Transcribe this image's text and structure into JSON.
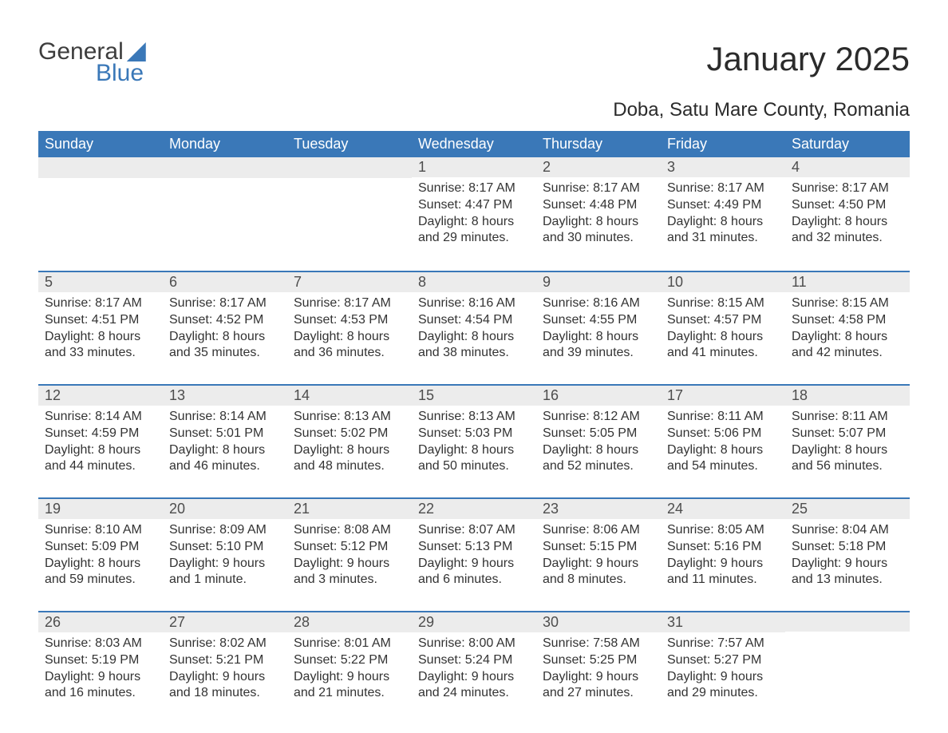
{
  "logo": {
    "text1": "General",
    "text2": "Blue"
  },
  "title": "January 2025",
  "location": "Doba, Satu Mare County, Romania",
  "colors": {
    "header_bg": "#3a78b8",
    "header_text": "#ffffff",
    "daynum_bg": "#ececec",
    "daynum_border": "#3a78b8",
    "body_bg": "#ffffff",
    "text": "#333333"
  },
  "weekdays": [
    "Sunday",
    "Monday",
    "Tuesday",
    "Wednesday",
    "Thursday",
    "Friday",
    "Saturday"
  ],
  "weeks": [
    [
      {
        "day": "",
        "sunrise": "",
        "sunset": "",
        "daylight": ""
      },
      {
        "day": "",
        "sunrise": "",
        "sunset": "",
        "daylight": ""
      },
      {
        "day": "",
        "sunrise": "",
        "sunset": "",
        "daylight": ""
      },
      {
        "day": "1",
        "sunrise": "Sunrise: 8:17 AM",
        "sunset": "Sunset: 4:47 PM",
        "daylight": "Daylight: 8 hours and 29 minutes."
      },
      {
        "day": "2",
        "sunrise": "Sunrise: 8:17 AM",
        "sunset": "Sunset: 4:48 PM",
        "daylight": "Daylight: 8 hours and 30 minutes."
      },
      {
        "day": "3",
        "sunrise": "Sunrise: 8:17 AM",
        "sunset": "Sunset: 4:49 PM",
        "daylight": "Daylight: 8 hours and 31 minutes."
      },
      {
        "day": "4",
        "sunrise": "Sunrise: 8:17 AM",
        "sunset": "Sunset: 4:50 PM",
        "daylight": "Daylight: 8 hours and 32 minutes."
      }
    ],
    [
      {
        "day": "5",
        "sunrise": "Sunrise: 8:17 AM",
        "sunset": "Sunset: 4:51 PM",
        "daylight": "Daylight: 8 hours and 33 minutes."
      },
      {
        "day": "6",
        "sunrise": "Sunrise: 8:17 AM",
        "sunset": "Sunset: 4:52 PM",
        "daylight": "Daylight: 8 hours and 35 minutes."
      },
      {
        "day": "7",
        "sunrise": "Sunrise: 8:17 AM",
        "sunset": "Sunset: 4:53 PM",
        "daylight": "Daylight: 8 hours and 36 minutes."
      },
      {
        "day": "8",
        "sunrise": "Sunrise: 8:16 AM",
        "sunset": "Sunset: 4:54 PM",
        "daylight": "Daylight: 8 hours and 38 minutes."
      },
      {
        "day": "9",
        "sunrise": "Sunrise: 8:16 AM",
        "sunset": "Sunset: 4:55 PM",
        "daylight": "Daylight: 8 hours and 39 minutes."
      },
      {
        "day": "10",
        "sunrise": "Sunrise: 8:15 AM",
        "sunset": "Sunset: 4:57 PM",
        "daylight": "Daylight: 8 hours and 41 minutes."
      },
      {
        "day": "11",
        "sunrise": "Sunrise: 8:15 AM",
        "sunset": "Sunset: 4:58 PM",
        "daylight": "Daylight: 8 hours and 42 minutes."
      }
    ],
    [
      {
        "day": "12",
        "sunrise": "Sunrise: 8:14 AM",
        "sunset": "Sunset: 4:59 PM",
        "daylight": "Daylight: 8 hours and 44 minutes."
      },
      {
        "day": "13",
        "sunrise": "Sunrise: 8:14 AM",
        "sunset": "Sunset: 5:01 PM",
        "daylight": "Daylight: 8 hours and 46 minutes."
      },
      {
        "day": "14",
        "sunrise": "Sunrise: 8:13 AM",
        "sunset": "Sunset: 5:02 PM",
        "daylight": "Daylight: 8 hours and 48 minutes."
      },
      {
        "day": "15",
        "sunrise": "Sunrise: 8:13 AM",
        "sunset": "Sunset: 5:03 PM",
        "daylight": "Daylight: 8 hours and 50 minutes."
      },
      {
        "day": "16",
        "sunrise": "Sunrise: 8:12 AM",
        "sunset": "Sunset: 5:05 PM",
        "daylight": "Daylight: 8 hours and 52 minutes."
      },
      {
        "day": "17",
        "sunrise": "Sunrise: 8:11 AM",
        "sunset": "Sunset: 5:06 PM",
        "daylight": "Daylight: 8 hours and 54 minutes."
      },
      {
        "day": "18",
        "sunrise": "Sunrise: 8:11 AM",
        "sunset": "Sunset: 5:07 PM",
        "daylight": "Daylight: 8 hours and 56 minutes."
      }
    ],
    [
      {
        "day": "19",
        "sunrise": "Sunrise: 8:10 AM",
        "sunset": "Sunset: 5:09 PM",
        "daylight": "Daylight: 8 hours and 59 minutes."
      },
      {
        "day": "20",
        "sunrise": "Sunrise: 8:09 AM",
        "sunset": "Sunset: 5:10 PM",
        "daylight": "Daylight: 9 hours and 1 minute."
      },
      {
        "day": "21",
        "sunrise": "Sunrise: 8:08 AM",
        "sunset": "Sunset: 5:12 PM",
        "daylight": "Daylight: 9 hours and 3 minutes."
      },
      {
        "day": "22",
        "sunrise": "Sunrise: 8:07 AM",
        "sunset": "Sunset: 5:13 PM",
        "daylight": "Daylight: 9 hours and 6 minutes."
      },
      {
        "day": "23",
        "sunrise": "Sunrise: 8:06 AM",
        "sunset": "Sunset: 5:15 PM",
        "daylight": "Daylight: 9 hours and 8 minutes."
      },
      {
        "day": "24",
        "sunrise": "Sunrise: 8:05 AM",
        "sunset": "Sunset: 5:16 PM",
        "daylight": "Daylight: 9 hours and 11 minutes."
      },
      {
        "day": "25",
        "sunrise": "Sunrise: 8:04 AM",
        "sunset": "Sunset: 5:18 PM",
        "daylight": "Daylight: 9 hours and 13 minutes."
      }
    ],
    [
      {
        "day": "26",
        "sunrise": "Sunrise: 8:03 AM",
        "sunset": "Sunset: 5:19 PM",
        "daylight": "Daylight: 9 hours and 16 minutes."
      },
      {
        "day": "27",
        "sunrise": "Sunrise: 8:02 AM",
        "sunset": "Sunset: 5:21 PM",
        "daylight": "Daylight: 9 hours and 18 minutes."
      },
      {
        "day": "28",
        "sunrise": "Sunrise: 8:01 AM",
        "sunset": "Sunset: 5:22 PM",
        "daylight": "Daylight: 9 hours and 21 minutes."
      },
      {
        "day": "29",
        "sunrise": "Sunrise: 8:00 AM",
        "sunset": "Sunset: 5:24 PM",
        "daylight": "Daylight: 9 hours and 24 minutes."
      },
      {
        "day": "30",
        "sunrise": "Sunrise: 7:58 AM",
        "sunset": "Sunset: 5:25 PM",
        "daylight": "Daylight: 9 hours and 27 minutes."
      },
      {
        "day": "31",
        "sunrise": "Sunrise: 7:57 AM",
        "sunset": "Sunset: 5:27 PM",
        "daylight": "Daylight: 9 hours and 29 minutes."
      },
      {
        "day": "",
        "sunrise": "",
        "sunset": "",
        "daylight": ""
      }
    ]
  ]
}
